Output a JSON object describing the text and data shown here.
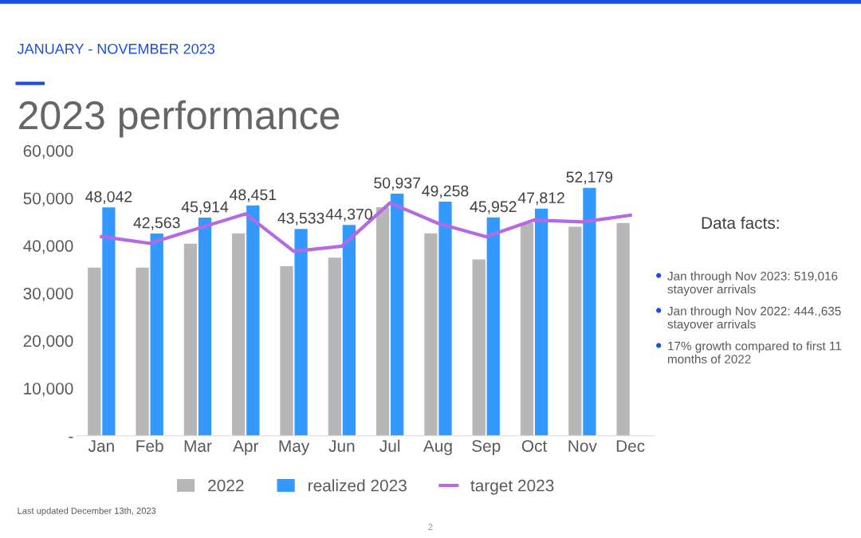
{
  "chart_data": {
    "type": "bar",
    "subtitle": "JANUARY - NOVEMBER 2023",
    "title": "2023 performance",
    "categories": [
      "Jan",
      "Feb",
      "Mar",
      "Apr",
      "May",
      "Jun",
      "Jul",
      "Aug",
      "Sep",
      "Oct",
      "Nov",
      "Dec"
    ],
    "series": [
      {
        "name": "2022",
        "color": "#b7b7b7",
        "values": [
          35400,
          35400,
          40400,
          42600,
          35700,
          37500,
          48100,
          42600,
          37100,
          44800,
          44000,
          44800
        ]
      },
      {
        "name": "realized 2023",
        "color": "#3399ff",
        "values": [
          48042,
          42563,
          45914,
          48451,
          43533,
          44370,
          50937,
          49258,
          45952,
          47812,
          52179,
          null
        ],
        "value_labels": [
          "48,042",
          "42,563",
          "45,914",
          "48,451",
          "43,533",
          "44,370",
          "50,937",
          "49,258",
          "45,952",
          "47,812",
          "52,179",
          null
        ]
      },
      {
        "name": "target 2023",
        "type": "line",
        "color": "#b36ae2",
        "values": [
          41900,
          40500,
          43600,
          46700,
          38800,
          39900,
          49000,
          44700,
          41900,
          45400,
          45000,
          46400
        ]
      }
    ],
    "ylim": [
      0,
      60000
    ],
    "yticks": [
      {
        "value": 0,
        "label": "-"
      },
      {
        "value": 10000,
        "label": "10,000"
      },
      {
        "value": 20000,
        "label": "20,000"
      },
      {
        "value": 30000,
        "label": "30,000"
      },
      {
        "value": 40000,
        "label": "40,000"
      },
      {
        "value": 50000,
        "label": "50,000"
      },
      {
        "value": 60000,
        "label": "60,000"
      }
    ],
    "grid": false,
    "legend": "bottom",
    "marker": "none",
    "line_style": "solid",
    "annotations": [
      "Data facts:",
      "Jan through Nov 2023: 519,016 stayover arrivals",
      "Jan through Nov 2022: 444.,635 stayover arrivals",
      "17% growth compared to first 11 months of 2022",
      "Last updated December 13th, 2023",
      "2"
    ]
  }
}
